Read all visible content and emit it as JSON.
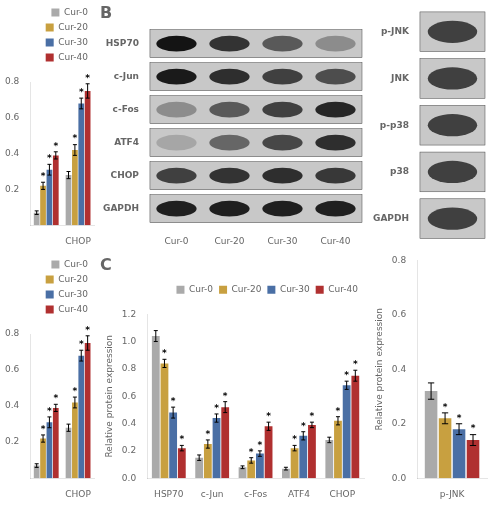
{
  "chart_data": [
    {
      "type": "bar",
      "categories": [
        null,
        "CHOP"
      ],
      "series": [
        {
          "name": "Cur-0",
          "color": "#aaaaaa",
          "values": [
            0.07,
            0.28
          ],
          "errors": [
            0.01,
            0.02
          ]
        },
        {
          "name": "Cur-20",
          "color": "#c8a040",
          "values": [
            0.22,
            0.42
          ],
          "errors": [
            0.02,
            0.03
          ],
          "annotation": "*"
        },
        {
          "name": "Cur-30",
          "color": "#4a6fa5",
          "values": [
            0.31,
            0.68
          ],
          "errors": [
            0.03,
            0.03
          ],
          "annotation": "*"
        },
        {
          "name": "Cur-40",
          "color": "#b03030",
          "values": [
            0.39,
            0.75
          ],
          "errors": [
            0.02,
            0.04
          ],
          "annotation": "*"
        }
      ],
      "ylim": [
        0.0,
        0.8
      ],
      "yticks": [
        0.2,
        0.4,
        0.6,
        0.8
      ],
      "grid": false,
      "legend": "upper right"
    },
    {
      "type": "heatmap",
      "title": "B",
      "categories": [
        "Cur-0",
        "Cur-20",
        "Cur-30",
        "Cur-40"
      ],
      "rows": [
        "HSP70",
        "c-Jun",
        "c-Fos",
        "ATF4",
        "CHOP",
        "GAPDH"
      ],
      "cells": [
        [
          0.08,
          0.2,
          0.35,
          0.55
        ],
        [
          0.1,
          0.18,
          0.25,
          0.3
        ],
        [
          0.55,
          0.35,
          0.25,
          0.15
        ],
        [
          0.65,
          0.4,
          0.28,
          0.18
        ],
        [
          0.25,
          0.2,
          0.18,
          0.22
        ],
        [
          0.12,
          0.12,
          0.12,
          0.12
        ]
      ]
    },
    {
      "type": "heatmap",
      "categories": [
        null
      ],
      "rows": [
        "p-JNK",
        "JNK",
        "p-p38",
        "p38",
        "GAPDH"
      ],
      "cells": [
        [
          0.25
        ],
        [
          0.25
        ],
        [
          0.25
        ],
        [
          0.25
        ],
        [
          0.25
        ]
      ],
      "tick_labels": "y"
    },
    {
      "type": "bar",
      "categories": [
        null,
        "CHOP"
      ],
      "series": [
        {
          "name": "Cur-0",
          "color": "#aaaaaa",
          "values": [
            0.07,
            0.28
          ],
          "errors": [
            0.01,
            0.02
          ]
        },
        {
          "name": "Cur-20",
          "color": "#c8a040",
          "values": [
            0.22,
            0.42
          ],
          "errors": [
            0.02,
            0.03
          ],
          "annotation": "*"
        },
        {
          "name": "Cur-30",
          "color": "#4a6fa5",
          "values": [
            0.31,
            0.68
          ],
          "errors": [
            0.03,
            0.03
          ],
          "annotation": "*"
        },
        {
          "name": "Cur-40",
          "color": "#b03030",
          "values": [
            0.39,
            0.75
          ],
          "errors": [
            0.02,
            0.04
          ],
          "annotation": "*"
        }
      ],
      "ylim": [
        0.0,
        0.8
      ],
      "yticks": [
        0.2,
        0.4,
        0.6,
        0.8
      ],
      "grid": false,
      "legend": "upper right"
    },
    {
      "type": "bar",
      "title": "C",
      "ylabel": "Relative protein expression",
      "categories": [
        "HSP70",
        "c-Jun",
        "c-Fos",
        "ATF4",
        "CHOP"
      ],
      "series": [
        {
          "name": "Cur-0",
          "color": "#aaaaaa",
          "values": [
            1.04,
            0.15,
            0.08,
            0.07,
            0.28
          ],
          "errors": [
            0.04,
            0.02,
            0.01,
            0.01,
            0.02
          ]
        },
        {
          "name": "Cur-20",
          "color": "#c8a040",
          "values": [
            0.84,
            0.25,
            0.13,
            0.22,
            0.42
          ],
          "errors": [
            0.03,
            0.03,
            0.02,
            0.02,
            0.03
          ],
          "annotation": "*"
        },
        {
          "name": "Cur-30",
          "color": "#4a6fa5",
          "values": [
            0.48,
            0.44,
            0.18,
            0.31,
            0.68
          ],
          "errors": [
            0.04,
            0.03,
            0.02,
            0.03,
            0.03
          ],
          "annotation": "*"
        },
        {
          "name": "Cur-40",
          "color": "#b03030",
          "values": [
            0.22,
            0.52,
            0.38,
            0.39,
            0.75
          ],
          "errors": [
            0.02,
            0.04,
            0.03,
            0.02,
            0.04
          ],
          "annotation": "*"
        }
      ],
      "ylim": [
        0.0,
        1.2
      ],
      "yticks": [
        {
          "value": 0.0,
          "label": "0.0"
        },
        0.2,
        0.4,
        0.6,
        0.8,
        {
          "value": 1.0,
          "label": "1.0"
        },
        1.2
      ],
      "grid": false,
      "legend": "upper right"
    },
    {
      "type": "bar",
      "ylabel": "Relative protein expression",
      "categories": [
        "p-JNK"
      ],
      "series": [
        {
          "name": "Cur-0",
          "color": "#aaaaaa",
          "values": [
            0.32
          ],
          "errors": [
            0.03
          ]
        },
        {
          "name": "Cur-20",
          "color": "#c8a040",
          "values": [
            0.22
          ],
          "errors": [
            0.02
          ],
          "annotation": "*"
        },
        {
          "name": "Cur-30",
          "color": "#4a6fa5",
          "values": [
            0.18
          ],
          "errors": [
            0.02
          ],
          "annotation": "*"
        },
        {
          "name": "Cur-40",
          "color": "#b03030",
          "values": [
            0.14
          ],
          "errors": [
            0.02
          ],
          "annotation": "*"
        }
      ],
      "ylim": [
        0.0,
        0.8
      ],
      "yticks": [
        {
          "value": 0.0,
          "label": "0.0"
        },
        0.2,
        0.4,
        0.6,
        0.8
      ],
      "grid": false
    }
  ]
}
